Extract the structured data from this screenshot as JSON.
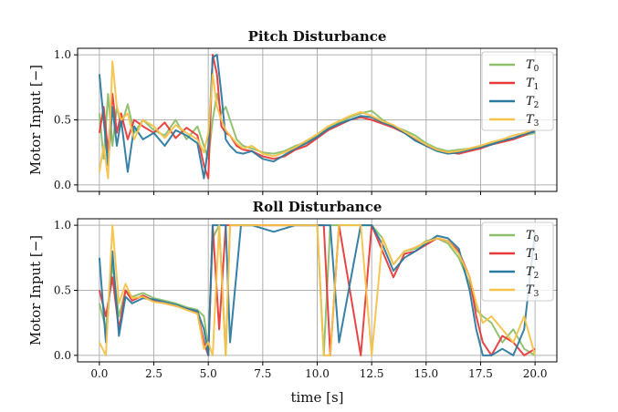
{
  "chart_data": [
    {
      "type": "line",
      "title": "Pitch Disturbance",
      "xlabel": "",
      "ylabel": "Motor Input [−]",
      "xlim": [
        -1,
        21
      ],
      "ylim": [
        -0.05,
        1.05
      ],
      "xticks": [
        0,
        2.5,
        5,
        7.5,
        10,
        12.5,
        15,
        17.5,
        20
      ],
      "yticks": [
        "0.0",
        "0.5",
        "1.0"
      ],
      "yticks_values": [
        0,
        0.5,
        1.0
      ],
      "grid": true,
      "legend_position": "top-right",
      "series": [
        {
          "name": "T",
          "sub": "0",
          "color": "#8dbf6a",
          "x": [
            0,
            0.2,
            0.4,
            0.6,
            0.8,
            1.0,
            1.3,
            1.6,
            2.0,
            2.5,
            3.0,
            3.5,
            4.0,
            4.5,
            4.8,
            5.0,
            5.2,
            5.4,
            5.6,
            5.8,
            6.0,
            6.3,
            6.6,
            7.0,
            7.5,
            8.0,
            8.5,
            9.0,
            9.5,
            10.0,
            10.5,
            11.0,
            11.5,
            12.0,
            12.5,
            13.0,
            13.5,
            14.0,
            14.5,
            15.0,
            15.5,
            16.0,
            16.5,
            17.0,
            17.5,
            18.0,
            18.5,
            19.0,
            19.5,
            20.0
          ],
          "y": [
            0.55,
            0.2,
            0.7,
            0.3,
            0.6,
            0.45,
            0.62,
            0.4,
            0.5,
            0.42,
            0.38,
            0.5,
            0.35,
            0.45,
            0.3,
            0.2,
            0.5,
            0.7,
            0.55,
            0.6,
            0.5,
            0.35,
            0.3,
            0.28,
            0.25,
            0.24,
            0.26,
            0.3,
            0.33,
            0.38,
            0.44,
            0.48,
            0.52,
            0.55,
            0.57,
            0.5,
            0.45,
            0.42,
            0.38,
            0.32,
            0.28,
            0.26,
            0.27,
            0.28,
            0.3,
            0.32,
            0.34,
            0.36,
            0.38,
            0.4
          ]
        },
        {
          "name": "T",
          "sub": "1",
          "color": "#e83a3a",
          "x": [
            0,
            0.2,
            0.4,
            0.6,
            0.8,
            1.0,
            1.3,
            1.6,
            2.0,
            2.5,
            3.0,
            3.5,
            4.0,
            4.5,
            4.8,
            5.0,
            5.2,
            5.4,
            5.6,
            5.8,
            6.0,
            6.3,
            6.6,
            7.0,
            7.5,
            8.0,
            8.5,
            9.0,
            9.5,
            10.0,
            10.5,
            11.0,
            11.5,
            12.0,
            12.5,
            13.0,
            13.5,
            14.0,
            14.5,
            15.0,
            15.5,
            16.0,
            16.5,
            17.0,
            17.5,
            18.0,
            18.5,
            19.0,
            19.5,
            20.0
          ],
          "y": [
            0.4,
            0.6,
            0.25,
            0.7,
            0.4,
            0.55,
            0.35,
            0.5,
            0.45,
            0.4,
            0.48,
            0.36,
            0.44,
            0.38,
            0.15,
            0.05,
            1.0,
            0.85,
            0.45,
            0.4,
            0.38,
            0.3,
            0.27,
            0.26,
            0.22,
            0.2,
            0.22,
            0.27,
            0.3,
            0.36,
            0.42,
            0.46,
            0.5,
            0.52,
            0.5,
            0.47,
            0.44,
            0.4,
            0.35,
            0.3,
            0.27,
            0.25,
            0.24,
            0.26,
            0.28,
            0.31,
            0.33,
            0.35,
            0.38,
            0.42
          ]
        },
        {
          "name": "T",
          "sub": "2",
          "color": "#2b7aa0",
          "x": [
            0,
            0.2,
            0.4,
            0.6,
            0.8,
            1.0,
            1.3,
            1.6,
            2.0,
            2.5,
            3.0,
            3.5,
            4.0,
            4.5,
            4.8,
            5.0,
            5.2,
            5.4,
            5.6,
            5.8,
            6.0,
            6.3,
            6.6,
            7.0,
            7.5,
            8.0,
            8.5,
            9.0,
            9.5,
            10.0,
            10.5,
            11.0,
            11.5,
            12.0,
            12.5,
            13.0,
            13.5,
            14.0,
            14.5,
            15.0,
            15.5,
            16.0,
            16.5,
            17.0,
            17.5,
            18.0,
            18.5,
            19.0,
            19.5,
            20.0
          ],
          "y": [
            0.85,
            0.5,
            0.15,
            0.6,
            0.3,
            0.5,
            0.1,
            0.45,
            0.35,
            0.4,
            0.3,
            0.42,
            0.38,
            0.32,
            0.05,
            0.3,
            0.98,
            1.0,
            0.7,
            0.35,
            0.3,
            0.25,
            0.24,
            0.26,
            0.2,
            0.18,
            0.23,
            0.28,
            0.32,
            0.37,
            0.43,
            0.47,
            0.5,
            0.53,
            0.52,
            0.48,
            0.45,
            0.4,
            0.34,
            0.3,
            0.26,
            0.24,
            0.25,
            0.27,
            0.29,
            0.31,
            0.34,
            0.36,
            0.39,
            0.41
          ]
        },
        {
          "name": "T",
          "sub": "3",
          "color": "#f5c24a",
          "x": [
            0,
            0.2,
            0.4,
            0.6,
            0.8,
            1.0,
            1.3,
            1.6,
            2.0,
            2.5,
            3.0,
            3.5,
            4.0,
            4.5,
            4.8,
            5.0,
            5.2,
            5.4,
            5.6,
            5.8,
            6.0,
            6.3,
            6.6,
            7.0,
            7.5,
            8.0,
            8.5,
            9.0,
            9.5,
            10.0,
            10.5,
            11.0,
            11.5,
            12.0,
            12.5,
            13.0,
            13.5,
            14.0,
            14.5,
            15.0,
            15.5,
            16.0,
            16.5,
            17.0,
            17.5,
            18.0,
            18.5,
            19.0,
            19.5,
            20.0
          ],
          "y": [
            0.1,
            0.3,
            0.05,
            0.95,
            0.6,
            0.5,
            0.55,
            0.35,
            0.5,
            0.45,
            0.36,
            0.46,
            0.4,
            0.35,
            0.25,
            0.4,
            0.85,
            0.6,
            0.5,
            0.42,
            0.38,
            0.32,
            0.28,
            0.3,
            0.24,
            0.22,
            0.25,
            0.29,
            0.34,
            0.39,
            0.45,
            0.49,
            0.53,
            0.56,
            0.53,
            0.49,
            0.46,
            0.41,
            0.36,
            0.31,
            0.27,
            0.25,
            0.26,
            0.28,
            0.3,
            0.33,
            0.35,
            0.38,
            0.4,
            0.43
          ]
        }
      ]
    },
    {
      "type": "line",
      "title": "Roll Disturbance",
      "xlabel": "time [s]",
      "ylabel": "Motor Input [−]",
      "xlim": [
        -1,
        21
      ],
      "ylim": [
        -0.05,
        1.05
      ],
      "xticks": [
        0,
        2.5,
        5,
        7.5,
        10,
        12.5,
        15,
        17.5,
        20
      ],
      "xtick_labels": [
        "0.0",
        "2.5",
        "5.0",
        "7.5",
        "10.0",
        "12.5",
        "15.0",
        "17.5",
        "20.0"
      ],
      "yticks": [
        "0.0",
        "0.5",
        "1.0"
      ],
      "yticks_values": [
        0,
        0.5,
        1.0
      ],
      "grid": true,
      "legend_position": "top-right",
      "series": [
        {
          "name": "T",
          "sub": "0",
          "color": "#8dbf6a",
          "x": [
            0,
            0.3,
            0.6,
            0.9,
            1.2,
            1.5,
            2.0,
            2.5,
            3.0,
            3.5,
            4.0,
            4.5,
            4.8,
            5.0,
            5.2,
            5.5,
            5.8,
            6.0,
            6.5,
            7.0,
            8.0,
            9.0,
            10.0,
            10.3,
            10.6,
            11.0,
            12.0,
            12.5,
            13.0,
            13.5,
            14.0,
            14.5,
            15.0,
            15.5,
            16.0,
            16.5,
            17.0,
            17.3,
            17.6,
            18.0,
            18.5,
            19.0,
            19.5,
            20.0
          ],
          "y": [
            0.4,
            0.2,
            0.7,
            0.3,
            0.5,
            0.45,
            0.48,
            0.44,
            0.42,
            0.4,
            0.37,
            0.35,
            0.3,
            0.05,
            0.9,
            1.0,
            0.0,
            1.0,
            1.0,
            1.0,
            1.0,
            1.0,
            1.0,
            0.0,
            1.0,
            1.0,
            1.0,
            1.0,
            0.9,
            0.7,
            0.8,
            0.82,
            0.88,
            0.9,
            0.86,
            0.75,
            0.55,
            0.35,
            0.3,
            0.25,
            0.1,
            0.2,
            0.05,
            0.0
          ]
        },
        {
          "name": "T",
          "sub": "1",
          "color": "#e83a3a",
          "x": [
            0,
            0.3,
            0.6,
            0.9,
            1.2,
            1.5,
            2.0,
            2.5,
            3.0,
            3.5,
            4.0,
            4.5,
            4.8,
            5.0,
            5.2,
            5.5,
            5.8,
            6.0,
            6.5,
            7.0,
            8.0,
            9.0,
            10.0,
            10.3,
            10.6,
            11.0,
            12.0,
            12.5,
            13.0,
            13.5,
            14.0,
            14.5,
            15.0,
            15.5,
            16.0,
            16.5,
            17.0,
            17.3,
            17.6,
            18.0,
            18.5,
            19.0,
            19.5,
            20.0
          ],
          "y": [
            0.5,
            0.3,
            0.6,
            0.2,
            0.5,
            0.42,
            0.46,
            0.42,
            0.4,
            0.38,
            0.36,
            0.33,
            0.1,
            0.0,
            1.0,
            0.2,
            1.0,
            1.0,
            1.0,
            1.0,
            1.0,
            1.0,
            1.0,
            1.0,
            0.0,
            1.0,
            0.0,
            1.0,
            0.8,
            0.6,
            0.78,
            0.8,
            0.85,
            0.9,
            0.88,
            0.8,
            0.6,
            0.3,
            0.1,
            0.0,
            0.15,
            0.1,
            0.0,
            0.05
          ]
        },
        {
          "name": "T",
          "sub": "2",
          "color": "#2b7aa0",
          "x": [
            0,
            0.3,
            0.6,
            0.9,
            1.2,
            1.5,
            2.0,
            2.5,
            3.0,
            3.5,
            4.0,
            4.5,
            4.8,
            5.0,
            5.2,
            5.5,
            5.8,
            6.0,
            6.5,
            7.0,
            8.0,
            9.0,
            10.0,
            10.3,
            10.6,
            11.0,
            12.0,
            12.5,
            13.0,
            13.5,
            14.0,
            14.5,
            15.0,
            15.5,
            16.0,
            16.5,
            17.0,
            17.3,
            17.6,
            18.0,
            18.5,
            19.0,
            19.5,
            20.0
          ],
          "y": [
            0.75,
            0.1,
            0.8,
            0.15,
            0.45,
            0.4,
            0.44,
            0.43,
            0.41,
            0.39,
            0.36,
            0.34,
            0.2,
            0.0,
            1.0,
            1.0,
            1.0,
            0.1,
            1.0,
            1.0,
            0.95,
            1.0,
            1.0,
            1.0,
            1.0,
            0.1,
            1.0,
            1.0,
            0.85,
            0.65,
            0.75,
            0.8,
            0.86,
            0.92,
            0.9,
            0.82,
            0.5,
            0.2,
            0.0,
            0.0,
            0.05,
            0.0,
            0.2,
            0.95
          ]
        },
        {
          "name": "T",
          "sub": "3",
          "color": "#f5c24a",
          "x": [
            0,
            0.3,
            0.6,
            0.9,
            1.2,
            1.5,
            2.0,
            2.5,
            3.0,
            3.5,
            4.0,
            4.5,
            4.8,
            5.0,
            5.2,
            5.5,
            5.8,
            6.0,
            6.5,
            7.0,
            8.0,
            9.0,
            10.0,
            10.3,
            10.6,
            11.0,
            12.0,
            12.5,
            13.0,
            13.5,
            14.0,
            14.5,
            15.0,
            15.5,
            16.0,
            16.5,
            17.0,
            17.3,
            17.6,
            18.0,
            18.5,
            19.0,
            19.5,
            20.0
          ],
          "y": [
            0.1,
            0.0,
            1.0,
            0.4,
            0.55,
            0.44,
            0.45,
            0.41,
            0.4,
            0.38,
            0.35,
            0.32,
            0.05,
            0.1,
            0.0,
            1.0,
            0.0,
            1.0,
            1.0,
            1.0,
            1.0,
            1.0,
            1.0,
            0.0,
            0.0,
            1.0,
            1.0,
            0.0,
            0.9,
            0.7,
            0.8,
            0.83,
            0.87,
            0.9,
            0.88,
            0.78,
            0.6,
            0.4,
            0.25,
            0.3,
            0.2,
            0.1,
            0.3,
            0.0
          ]
        }
      ]
    }
  ]
}
